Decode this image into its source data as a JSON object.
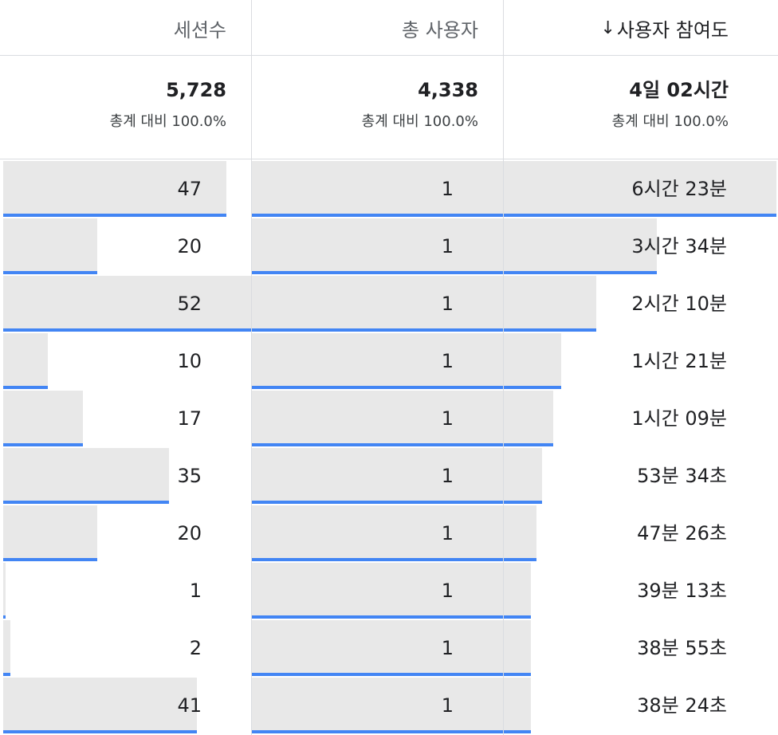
{
  "header": {
    "col_sessions": "세션수",
    "col_total_users": "총 사용자",
    "sort_arrow": "↓",
    "col_engagement": "사용자 참여도"
  },
  "totals": {
    "sessions": "5,728",
    "total_users": "4,338",
    "engagement": "4일 02시간",
    "sessions_pct": "총계 대비 100.0%",
    "users_pct": "총계 대비 100.0%",
    "engagement_pct": "총계 대비 100.0%"
  },
  "colors": {
    "bar_fill": "#e8e8e8",
    "bar_accent": "#4285f4"
  },
  "rows": [
    {
      "sessions": "47",
      "sessions_fill": 0.9,
      "users": "1",
      "users_fill": 1.0,
      "engagement": "6시간 23분",
      "engagement_fill": 1.0
    },
    {
      "sessions": "20",
      "sessions_fill": 0.38,
      "users": "1",
      "users_fill": 1.0,
      "engagement": "3시간 34분",
      "engagement_fill": 0.56
    },
    {
      "sessions": "52",
      "sessions_fill": 1.0,
      "users": "1",
      "users_fill": 1.0,
      "engagement": "2시간 10분",
      "engagement_fill": 0.34
    },
    {
      "sessions": "10",
      "sessions_fill": 0.18,
      "users": "1",
      "users_fill": 1.0,
      "engagement": "1시간 21분",
      "engagement_fill": 0.21
    },
    {
      "sessions": "17",
      "sessions_fill": 0.32,
      "users": "1",
      "users_fill": 1.0,
      "engagement": "1시간 09분",
      "engagement_fill": 0.18
    },
    {
      "sessions": "35",
      "sessions_fill": 0.67,
      "users": "1",
      "users_fill": 1.0,
      "engagement": "53분 34초",
      "engagement_fill": 0.14
    },
    {
      "sessions": "20",
      "sessions_fill": 0.38,
      "users": "1",
      "users_fill": 1.0,
      "engagement": "47분 26초",
      "engagement_fill": 0.12
    },
    {
      "sessions": "1",
      "sessions_fill": 0.01,
      "users": "1",
      "users_fill": 1.0,
      "engagement": "39분 13초",
      "engagement_fill": 0.1
    },
    {
      "sessions": "2",
      "sessions_fill": 0.03,
      "users": "1",
      "users_fill": 1.0,
      "engagement": "38분 55초",
      "engagement_fill": 0.1
    },
    {
      "sessions": "41",
      "sessions_fill": 0.78,
      "users": "1",
      "users_fill": 1.0,
      "engagement": "38분 24초",
      "engagement_fill": 0.1
    }
  ]
}
